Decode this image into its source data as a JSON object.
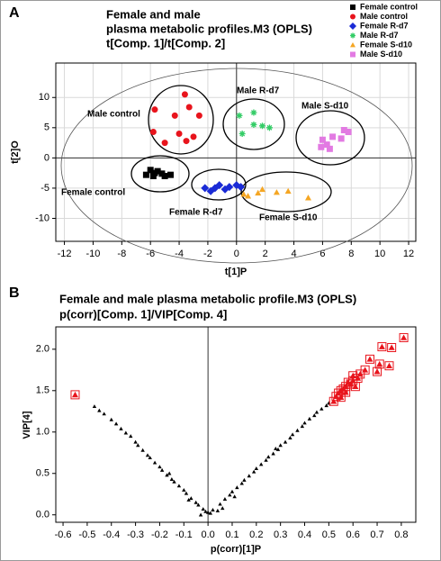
{
  "chart_data": [
    {
      "type": "scatter",
      "panel": "A",
      "title": [
        "Female and male",
        "plasma metabolic profiles.M3 (OPLS)",
        "t[Comp. 1]/t[Comp. 2]"
      ],
      "x_label": "t[1]P",
      "y_label": "t[2]O",
      "xlim": [
        -12.6,
        12.5
      ],
      "ylim": [
        -13.8,
        15.7
      ],
      "xticks": [
        -12,
        -10,
        -8,
        -6,
        -4,
        -2,
        0,
        2,
        4,
        6,
        8,
        10,
        12
      ],
      "yticks": [
        -10,
        -5,
        0,
        5,
        10
      ],
      "grid": true,
      "legend": "upper right",
      "annotations": [
        {
          "text": "Male control"
        },
        {
          "text": "Male R-d7"
        },
        {
          "text": "Male S-d10"
        },
        {
          "text": "Female control"
        },
        {
          "text": "Female R-d7"
        },
        {
          "text": "Female S-d10"
        }
      ],
      "series": [
        {
          "name": "Female control",
          "color": "#000000",
          "marker": "square",
          "x": [
            -6.3,
            -6,
            -5.8,
            -5.7,
            -5.5,
            -5.2,
            -5,
            -4.6
          ],
          "values": [
            -2.8,
            -2,
            -3,
            -2.5,
            -2.2,
            -2.6,
            -3,
            -2.8
          ]
        },
        {
          "name": "Male control",
          "color": "#e8141c",
          "marker": "circle",
          "x": [
            -3.6,
            -5.7,
            -4.3,
            -3.3,
            -2.6,
            -5.8,
            -4,
            -3,
            -5,
            -3.5
          ],
          "values": [
            10.5,
            8,
            7,
            8.4,
            7,
            4.3,
            4,
            3.5,
            2.5,
            2.8
          ]
        },
        {
          "name": "Female R-d7",
          "color": "#1a2bd6",
          "marker": "diamond",
          "x": [
            -2.2,
            -1.8,
            -1.5,
            -1.2,
            -0.8,
            -0.5,
            0,
            0.3
          ],
          "values": [
            -5,
            -5.5,
            -5,
            -4.5,
            -5.2,
            -4.8,
            -4.5,
            -4.8
          ]
        },
        {
          "name": "Male R-d7",
          "color": "#33cc66",
          "marker": "star",
          "x": [
            1.2,
            0.2,
            1.2,
            1.8,
            2.3,
            0.4
          ],
          "values": [
            7.5,
            7,
            5.5,
            5.3,
            5,
            4
          ]
        },
        {
          "name": "Female S-d10",
          "color": "#f5a623",
          "marker": "triangle",
          "x": [
            0.5,
            0.8,
            1.5,
            1.8,
            2.8,
            3.6,
            5
          ],
          "values": [
            -6,
            -6.3,
            -5.8,
            -5.2,
            -5.7,
            -5.5,
            -6.6
          ]
        },
        {
          "name": "Male S-d10",
          "color": "#e27ae2",
          "marker": "square",
          "x": [
            5.9,
            6,
            6.3,
            6.5,
            6.7,
            7.3,
            7.5,
            7.8
          ],
          "values": [
            1.8,
            3,
            2.2,
            1.5,
            3.5,
            3.2,
            4.6,
            4.3
          ]
        }
      ]
    },
    {
      "type": "scatter",
      "panel": "B",
      "title": [
        "Female and male plasma metabolic profile.M3 (OPLS)",
        "p(corr)[Comp. 1]/VIP[Comp. 4]"
      ],
      "x_label": "p(corr)[1]P",
      "y_label": "VIP[4]",
      "xlim": [
        -0.63,
        0.86
      ],
      "ylim": [
        -0.09,
        2.27
      ],
      "xticks": [
        -0.6,
        -0.5,
        -0.4,
        -0.3,
        -0.2,
        -0.1,
        {
          "value": 0,
          "label": "0.0"
        },
        0.1,
        0.2,
        0.3,
        0.4,
        0.5,
        0.6,
        0.7,
        0.8
      ],
      "yticks": [
        {
          "value": 0,
          "label": "0.0"
        },
        0.5,
        {
          "value": 1,
          "label": "1.0"
        },
        1.5,
        {
          "value": 2,
          "label": "2.0"
        }
      ],
      "grid": false,
      "series": [
        {
          "color": "#000000",
          "marker": "triangle",
          "x": [
            -0.47,
            -0.45,
            -0.43,
            -0.4,
            -0.38,
            -0.36,
            -0.34,
            -0.32,
            -0.3,
            -0.29,
            -0.27,
            -0.25,
            -0.24,
            -0.22,
            -0.2,
            -0.19,
            -0.17,
            -0.15,
            -0.14,
            -0.12,
            -0.1,
            -0.09,
            -0.07,
            -0.05,
            -0.04,
            -0.02,
            -0.01,
            0.01,
            0.02,
            0.04,
            0.05,
            0.07,
            0.09,
            0.1,
            0.12,
            0.14,
            0.15,
            0.17,
            0.19,
            0.2,
            0.22,
            0.24,
            0.25,
            0.27,
            0.29,
            0.3,
            0.32,
            0.34,
            0.35,
            0.37,
            0.39,
            0.4,
            0.42,
            0.44,
            0.45,
            0.47,
            0.49,
            0.5,
            -0.08,
            0.06,
            -0.03,
            0,
            0.11,
            -0.16,
            0.28
          ],
          "values": [
            1.31,
            1.26,
            1.22,
            1.15,
            1.1,
            1.04,
            0.99,
            0.95,
            0.88,
            0.84,
            0.78,
            0.72,
            0.69,
            0.63,
            0.58,
            0.54,
            0.48,
            0.43,
            0.4,
            0.35,
            0.3,
            0.26,
            0.2,
            0.15,
            0.12,
            0.07,
            0.04,
            0.02,
            0.06,
            0.05,
            0.13,
            0.19,
            0.24,
            0.28,
            0.33,
            0.38,
            0.42,
            0.47,
            0.52,
            0.56,
            0.61,
            0.66,
            0.7,
            0.74,
            0.79,
            0.84,
            0.88,
            0.93,
            0.97,
            1.02,
            1.07,
            1.11,
            1.16,
            1.2,
            1.24,
            1.28,
            1.32,
            1.35,
            0.18,
            0.08,
            0,
            0.03,
            0.22,
            0.5,
            0.8
          ]
        },
        {
          "color": "#e8141c",
          "marker": "boxed-triangle",
          "x": [
            -0.55,
            0.52,
            0.53,
            0.54,
            0.55,
            0.55,
            0.56,
            0.57,
            0.57,
            0.58,
            0.59,
            0.6,
            0.6,
            0.61,
            0.62,
            0.63,
            0.65,
            0.67,
            0.7,
            0.71,
            0.72,
            0.75,
            0.76,
            0.81
          ],
          "values": [
            1.45,
            1.37,
            1.43,
            1.47,
            1.5,
            1.42,
            1.52,
            1.55,
            1.48,
            1.6,
            1.58,
            1.62,
            1.68,
            1.55,
            1.65,
            1.7,
            1.75,
            1.88,
            1.73,
            1.82,
            2.03,
            1.8,
            2.02,
            2.14
          ]
        }
      ]
    }
  ]
}
